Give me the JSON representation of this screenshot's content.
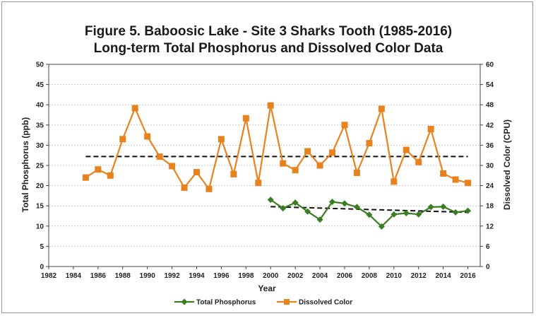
{
  "chart_data": {
    "type": "line",
    "title_line1": "Figure 5. Baboosic Lake - Site 3 Sharks Tooth (1985-2016)",
    "title_line2": "Long-term Total Phosphorus and Dissolved Color Data",
    "xlabel": "Year",
    "ylabel_left": "Total Phosphorus (ppb)",
    "ylabel_right": "Dissolved Color (CPU)",
    "xlim": [
      1982,
      2017
    ],
    "ylim_left": [
      0,
      50
    ],
    "ylim_right": [
      0,
      60
    ],
    "x_ticks": [
      1982,
      1984,
      1986,
      1988,
      1990,
      1992,
      1994,
      1996,
      1998,
      2000,
      2002,
      2004,
      2006,
      2008,
      2010,
      2012,
      2014,
      2016
    ],
    "y_ticks_left": [
      0,
      5,
      10,
      15,
      20,
      25,
      30,
      35,
      40,
      45,
      50
    ],
    "y_ticks_right": [
      0,
      6,
      12,
      18,
      24,
      30,
      36,
      42,
      48,
      54,
      60
    ],
    "grid": "horizontal dashed",
    "legend_position": "bottom",
    "series": [
      {
        "name": "Total Phosphorus",
        "axis": "left",
        "color": "#3a7d23",
        "marker": "diamond",
        "x": [
          2000,
          2001,
          2002,
          2003,
          2004,
          2005,
          2006,
          2007,
          2008,
          2009,
          2010,
          2011,
          2012,
          2013,
          2014,
          2015,
          2016
        ],
        "values": [
          16.5,
          14.4,
          15.8,
          13.6,
          11.6,
          16.0,
          15.6,
          14.7,
          12.8,
          9.9,
          12.9,
          13.2,
          12.9,
          14.7,
          14.8,
          13.4,
          13.8
        ]
      },
      {
        "name": "Dissolved Color",
        "axis": "right",
        "color": "#e8821e",
        "marker": "square",
        "x": [
          1985,
          1986,
          1987,
          1988,
          1989,
          1990,
          1991,
          1992,
          1993,
          1994,
          1995,
          1996,
          1997,
          1998,
          1999,
          2000,
          2001,
          2002,
          2003,
          2004,
          2005,
          2006,
          2007,
          2008,
          2009,
          2010,
          2011,
          2012,
          2013,
          2014,
          2015,
          2016
        ],
        "values": [
          26.4,
          28.8,
          27.0,
          37.8,
          47.0,
          38.6,
          32.6,
          29.8,
          23.4,
          28.0,
          23.0,
          37.8,
          27.4,
          44.0,
          24.8,
          47.8,
          30.6,
          28.6,
          34.2,
          30.0,
          33.8,
          42.0,
          27.8,
          36.6,
          46.8,
          25.2,
          34.6,
          31.0,
          40.8,
          27.6,
          25.8,
          24.8
        ]
      }
    ],
    "trendlines": [
      {
        "axis": "left",
        "x": [
          1985,
          2016
        ],
        "values": [
          27.2,
          27.2
        ]
      },
      {
        "axis": "left",
        "x": [
          2000,
          2016
        ],
        "values": [
          14.8,
          13.4
        ]
      }
    ]
  }
}
